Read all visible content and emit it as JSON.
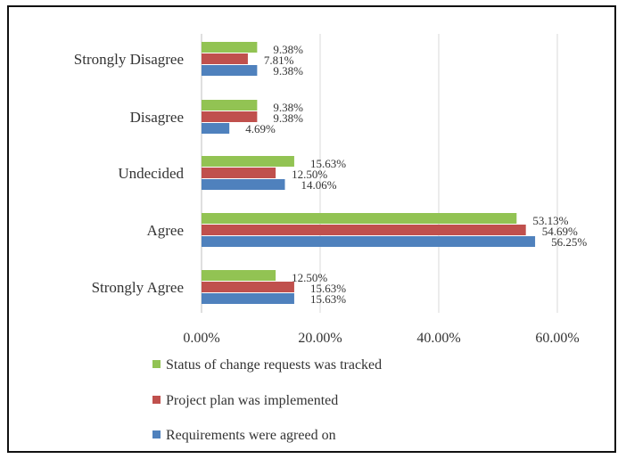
{
  "chart_data": {
    "type": "bar",
    "orientation": "horizontal",
    "categories": [
      "Strongly Disagree",
      "Disagree",
      "Undecided",
      "Agree",
      "Strongly Agree"
    ],
    "series": [
      {
        "name": "Status of change requests was tracked",
        "color": "#92c353",
        "values": [
          9.38,
          9.38,
          15.63,
          53.13,
          12.5
        ],
        "labels": [
          "9.38%",
          "9.38%",
          "15.63%",
          "53.13%",
          "12.50%"
        ]
      },
      {
        "name": "Project plan was implemented",
        "color": "#c0504d",
        "values": [
          7.81,
          9.38,
          12.5,
          54.69,
          15.63
        ],
        "labels": [
          "7.81%",
          "9.38%",
          "12.50%",
          "54.69%",
          "15.63%"
        ]
      },
      {
        "name": "Requirements were agreed on",
        "color": "#4f81bd",
        "values": [
          9.38,
          4.69,
          14.06,
          56.25,
          15.63
        ],
        "labels": [
          "9.38%",
          "4.69%",
          "14.06%",
          "56.25%",
          "15.63%"
        ]
      }
    ],
    "x_ticks": [
      "0.00%",
      "20.00%",
      "40.00%",
      "60.00%"
    ],
    "xlim": [
      0,
      70
    ],
    "grid": true,
    "legend_position": "bottom"
  }
}
